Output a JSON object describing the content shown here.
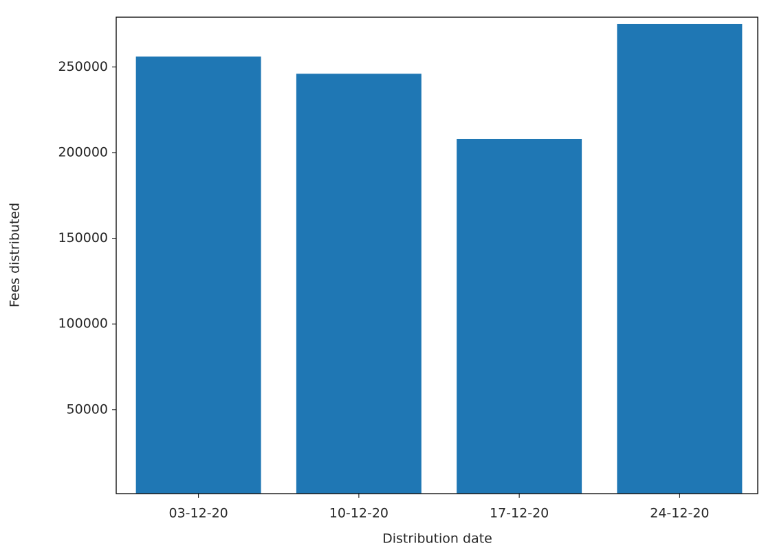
{
  "chart_data": {
    "type": "bar",
    "x_label": "Distribution date",
    "y_label": "Fees distributed",
    "categories": [
      "03-12-20",
      "10-12-20",
      "17-12-20",
      "24-12-20"
    ],
    "values": [
      256000,
      246000,
      208000,
      275000
    ],
    "color": "#1f77b4",
    "ylim": [
      1000,
      279000
    ],
    "yticks": [
      50000,
      100000,
      150000,
      200000,
      250000
    ],
    "grid": false
  }
}
